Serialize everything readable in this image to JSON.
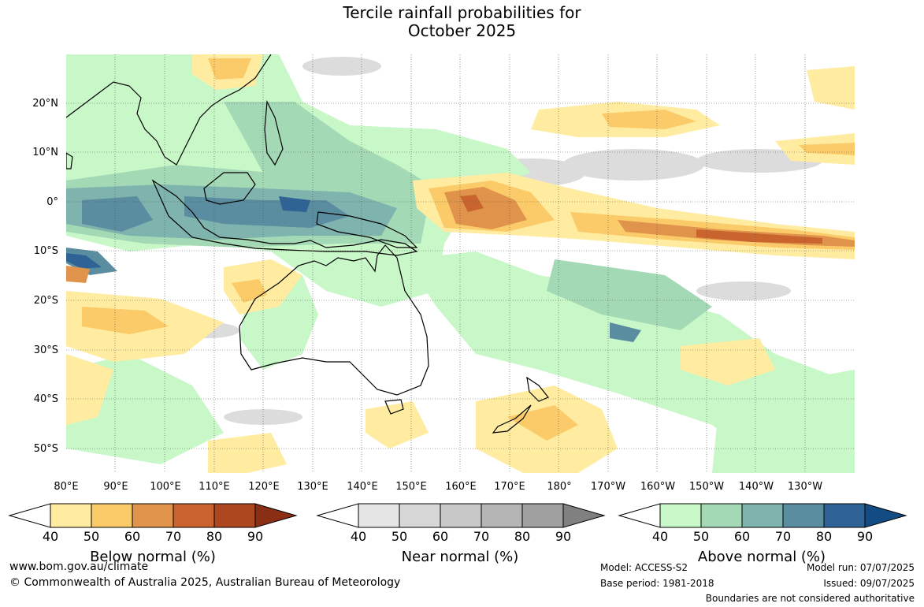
{
  "title": {
    "line1": "Tercile rainfall probabilities for",
    "line2": "October 2025"
  },
  "latitude_labels": [
    "20°N",
    "10°N",
    "0°",
    "10°S",
    "20°S",
    "30°S",
    "40°S",
    "50°S"
  ],
  "longitude_labels": [
    "80°E",
    "90°E",
    "100°E",
    "110°E",
    "120°E",
    "130°E",
    "140°E",
    "150°E",
    "160°E",
    "170°E",
    "180°",
    "170°W",
    "160°W",
    "150°W",
    "140°W",
    "130°W"
  ],
  "colorbars": [
    {
      "name": "Below normal (%)",
      "ticks": [
        "40",
        "50",
        "60",
        "70",
        "80",
        "90"
      ],
      "colors": [
        "#ffffff",
        "#ffeca0",
        "#fccb69",
        "#e0934b",
        "#c9642e",
        "#ad4720",
        "#8b2f14"
      ]
    },
    {
      "name": "Near normal (%)",
      "ticks": [
        "40",
        "50",
        "60",
        "70",
        "80",
        "90"
      ],
      "colors": [
        "#ffffff",
        "#e5e5e5",
        "#d7d7d7",
        "#c8c8c8",
        "#b5b5b5",
        "#a0a0a0",
        "#808080"
      ]
    },
    {
      "name": "Above normal (%)",
      "ticks": [
        "40",
        "50",
        "60",
        "70",
        "80",
        "90"
      ],
      "colors": [
        "#ffffff",
        "#c8f7c8",
        "#a3d9b5",
        "#7fb3ad",
        "#5a8da0",
        "#2f6395",
        "#134c82"
      ]
    }
  ],
  "footer": {
    "url": "www.bom.gov.au/climate",
    "copyright": "© Commonwealth of Australia 2025, Australian Bureau of Meteorology",
    "model": "Model: ACCESS-S2",
    "base_period": "Base period: 1981-2018",
    "model_run": "Model run: 07/07/2025",
    "issued": "Issued: 09/07/2025",
    "boundaries": "Boundaries are not considered authoritative"
  }
}
